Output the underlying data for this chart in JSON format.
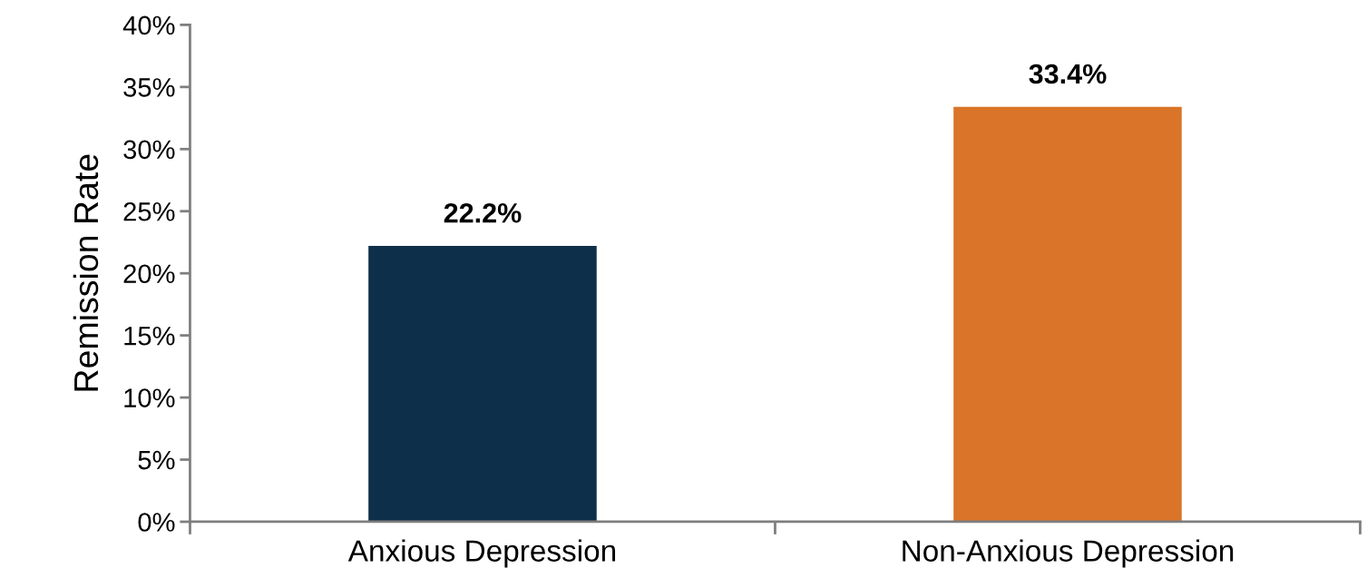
{
  "chart_data": {
    "type": "bar",
    "ylabel": "Remission Rate",
    "categories": [
      "Anxious Depression",
      "Non-Anxious Depression"
    ],
    "values": [
      22.2,
      33.4
    ],
    "colors": [
      "#0e2f4a",
      "#d97428"
    ],
    "value_labels": [
      "22.2%",
      "33.4%"
    ],
    "ylim": [
      0,
      40
    ],
    "yticks": [
      {
        "value": 0,
        "label": "0%"
      },
      {
        "value": 5,
        "label": "5%"
      },
      {
        "value": 10,
        "label": "10%"
      },
      {
        "value": 15,
        "label": "15%"
      },
      {
        "value": 20,
        "label": "20%"
      },
      {
        "value": 25,
        "label": "25%"
      },
      {
        "value": 30,
        "label": "30%"
      },
      {
        "value": 35,
        "label": "35%"
      },
      {
        "value": 40,
        "label": "40%"
      }
    ],
    "grid": false
  }
}
